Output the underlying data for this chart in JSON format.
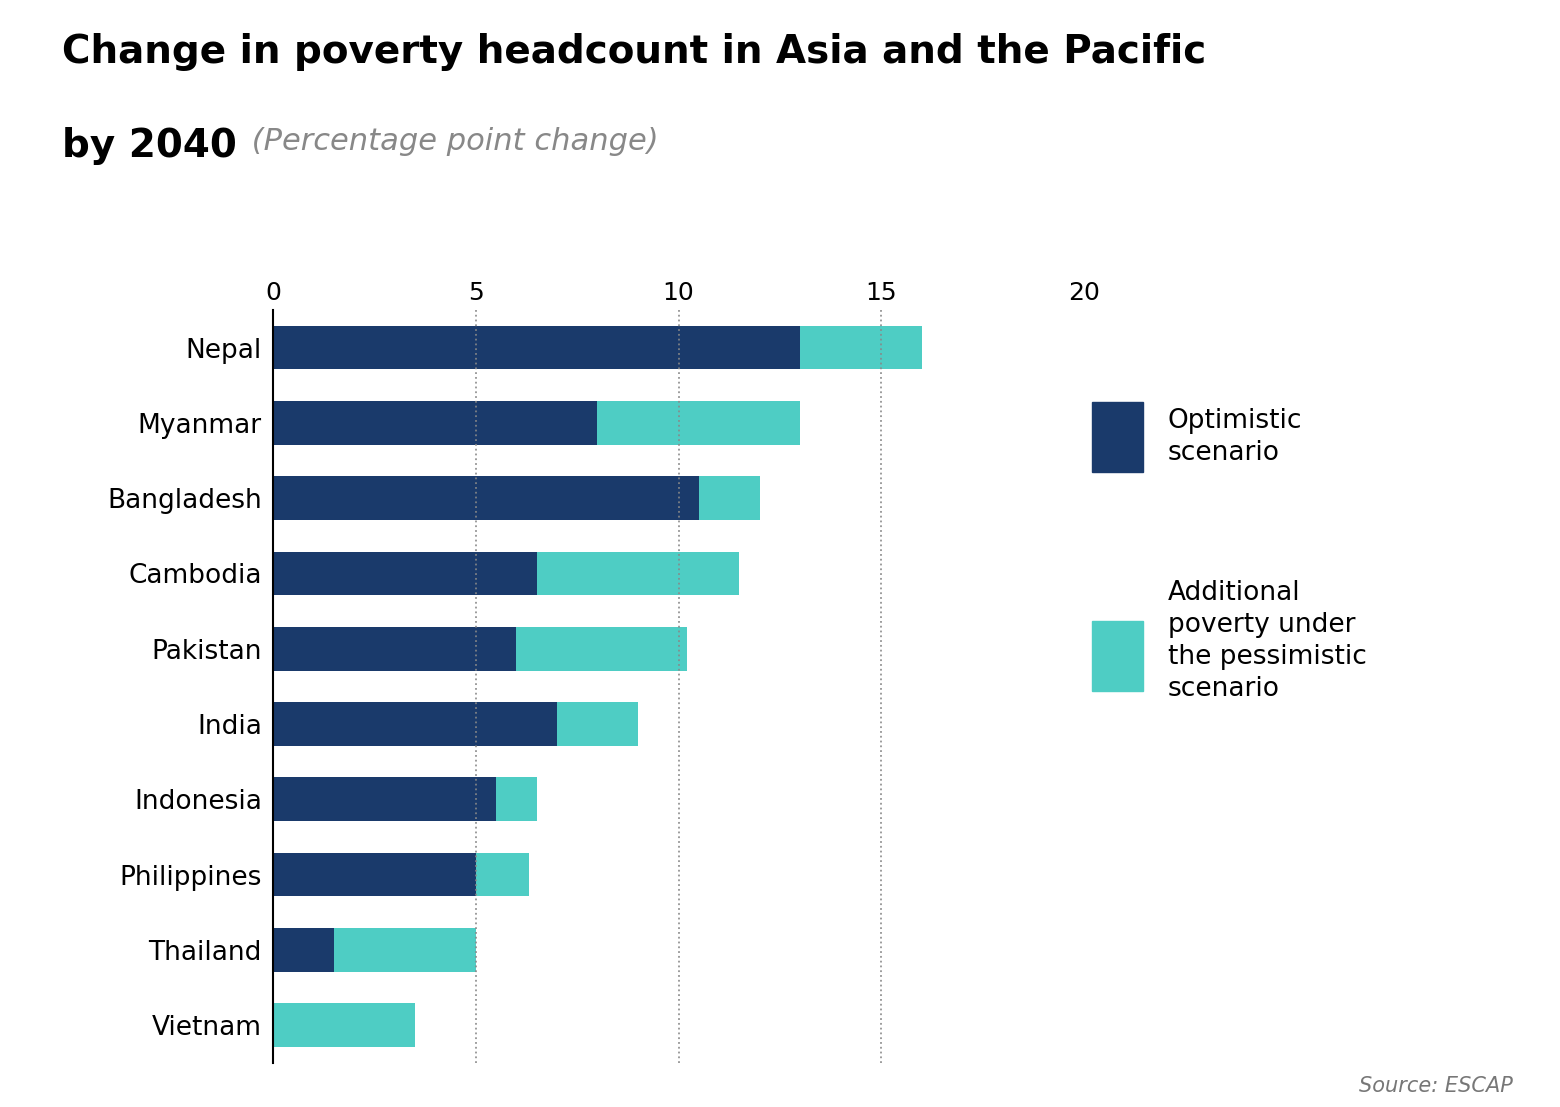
{
  "title_line1": "Change in poverty headcount in Asia and the Pacific",
  "title_line2_bold": "by 2040",
  "title_line2_italic": " (Percentage point change)",
  "countries": [
    "Nepal",
    "Myanmar",
    "Bangladesh",
    "Cambodia",
    "Pakistan",
    "India",
    "Indonesia",
    "Philippines",
    "Thailand",
    "Vietnam"
  ],
  "optimistic": [
    13.0,
    8.0,
    10.5,
    6.5,
    6.0,
    7.0,
    5.5,
    5.0,
    1.5,
    0.0
  ],
  "additional": [
    3.0,
    5.0,
    1.5,
    5.0,
    4.2,
    2.0,
    1.0,
    1.3,
    3.5,
    3.5
  ],
  "color_optimistic": "#1a3a6b",
  "color_additional": "#4ecdc4",
  "xlim": [
    0,
    20
  ],
  "xticks": [
    0,
    5,
    10,
    15,
    20
  ],
  "source_text": "Source: ESCAP",
  "legend_label1": "Optimistic\nscenario",
  "legend_label2": "Additional\npoverty under\nthe pessimistic\nscenario",
  "background_color": "#ffffff",
  "bar_height": 0.58
}
